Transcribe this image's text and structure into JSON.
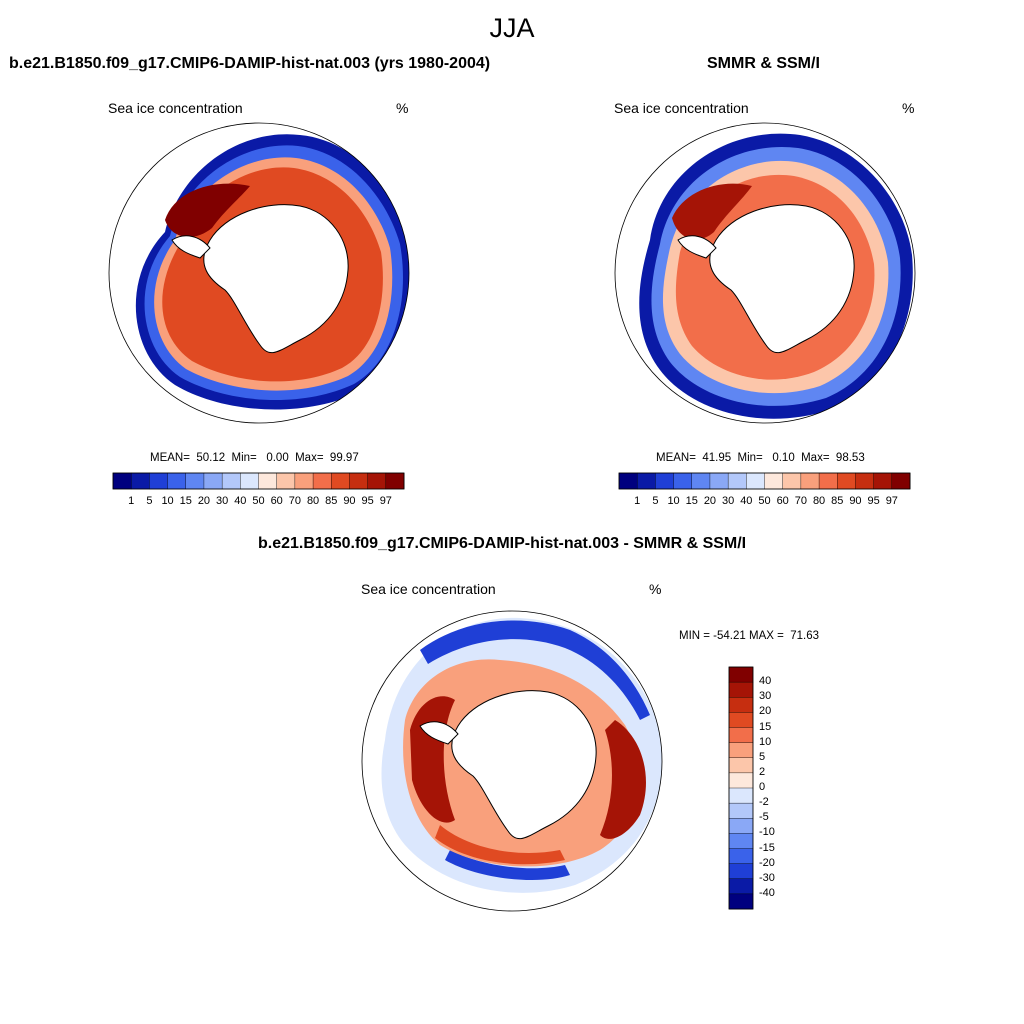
{
  "title": "JJA",
  "panels": {
    "model": {
      "title": "b.e21.B1850.f09_g17.CMIP6-DAMIP-hist-nat.003 (yrs 1980-2004)",
      "subtitle": "Sea ice concentration",
      "units": "%",
      "stats": "MEAN=  50.12  Min=   0.00  Max=  99.97"
    },
    "obs": {
      "title": "SMMR & SSM/I",
      "subtitle": "Sea ice concentration",
      "units": "%",
      "stats": "MEAN=  41.95  Min=   0.10  Max=  98.53"
    },
    "diff": {
      "title": "b.e21.B1850.f09_g17.CMIP6-DAMIP-hist-nat.003 - SMMR & SSM/I",
      "subtitle": "Sea ice concentration",
      "units": "%",
      "stats": "MIN = -54.21 MAX =  71.63"
    }
  },
  "colorbar_abs": {
    "labels": [
      "1",
      "5",
      "10",
      "15",
      "20",
      "30",
      "40",
      "50",
      "60",
      "70",
      "80",
      "85",
      "90",
      "95",
      "97"
    ],
    "colors": [
      "#00007f",
      "#0a1aa6",
      "#1f3fd6",
      "#3a62ea",
      "#5f86f2",
      "#8aa8f6",
      "#b3c8fa",
      "#dbe7fd",
      "#fde8dc",
      "#fcc6aa",
      "#f9a07c",
      "#f26e4a",
      "#e04a22",
      "#c62e10",
      "#a51406",
      "#800000"
    ]
  },
  "colorbar_diff": {
    "labels": [
      "40",
      "30",
      "20",
      "15",
      "10",
      "5",
      "2",
      "0",
      "-2",
      "-5",
      "-10",
      "-15",
      "-20",
      "-30",
      "-40"
    ],
    "colors": [
      "#800000",
      "#a51406",
      "#c62e10",
      "#e04a22",
      "#f26e4a",
      "#f9a07c",
      "#fcc6aa",
      "#fde8dc",
      "#dbe7fd",
      "#b3c8fa",
      "#8aa8f6",
      "#5f86f2",
      "#3a62ea",
      "#1f3fd6",
      "#0a1aa6",
      "#00007f"
    ]
  }
}
